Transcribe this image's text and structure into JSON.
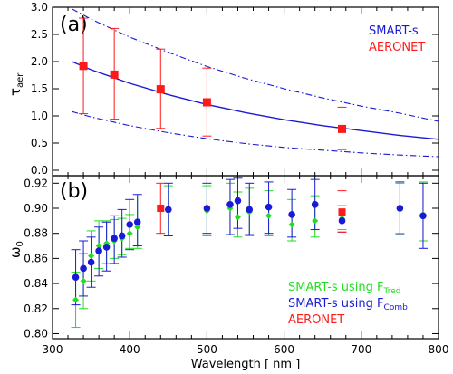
{
  "colors": {
    "smart_s": "#1a1ad6",
    "aeronet": "#ff1a1a",
    "tred": "#22dd22",
    "comb": "#1a1ad6",
    "axis": "#000000"
  },
  "chart_data": [
    {
      "type": "line",
      "panel_label": "(a)",
      "ylabel": {
        "symbol": "τ",
        "sub": "aer"
      },
      "ylim": [
        -0.1,
        3.0
      ],
      "yticks": [
        "0.0",
        "0.5",
        "1.0",
        "1.5",
        "2.0",
        "2.5",
        "3.0"
      ],
      "ytick_values": [
        0.0,
        0.5,
        1.0,
        1.5,
        2.0,
        2.5,
        3.0
      ],
      "xlim": [
        300,
        800
      ],
      "show_x_tick_labels": false,
      "legend": {
        "placement": "top-right",
        "entries": [
          "SMART-s",
          "AERONET"
        ]
      },
      "series": [
        {
          "name": "SMART-s",
          "style": "solid",
          "x": [
            325,
            350,
            400,
            450,
            500,
            550,
            600,
            650,
            700,
            750,
            800
          ],
          "y": [
            2.0,
            1.85,
            1.6,
            1.39,
            1.21,
            1.06,
            0.93,
            0.82,
            0.73,
            0.64,
            0.57
          ]
        },
        {
          "name": "SMART-s upper bound",
          "style": "dash-dot",
          "x": [
            325,
            350,
            400,
            450,
            500,
            550,
            600,
            650,
            700,
            750,
            800
          ],
          "y": [
            2.97,
            2.78,
            2.45,
            2.17,
            1.91,
            1.69,
            1.5,
            1.33,
            1.18,
            1.05,
            0.9
          ]
        },
        {
          "name": "SMART-s lower bound",
          "style": "dash-dot",
          "x": [
            325,
            350,
            400,
            450,
            500,
            550,
            600,
            650,
            700,
            750,
            800
          ],
          "y": [
            1.08,
            0.98,
            0.82,
            0.69,
            0.58,
            0.49,
            0.42,
            0.37,
            0.32,
            0.28,
            0.25
          ]
        },
        {
          "name": "AERONET",
          "style": "markers",
          "x": [
            340,
            380,
            440,
            500,
            675
          ],
          "y": [
            1.92,
            1.76,
            1.49,
            1.25,
            0.76
          ],
          "err_low": [
            0.88,
            0.82,
            0.72,
            0.62,
            0.38
          ],
          "err_high": [
            0.88,
            0.85,
            0.74,
            0.63,
            0.4
          ]
        }
      ]
    },
    {
      "type": "scatter",
      "panel_label": "(b)",
      "ylabel": {
        "symbol": "ω",
        "sub": "0"
      },
      "xlabel": "Wavelength [ nm ]",
      "ylim": [
        0.796,
        0.926
      ],
      "yticks": [
        "0.80",
        "0.82",
        "0.84",
        "0.86",
        "0.88",
        "0.90",
        "0.92"
      ],
      "ytick_values": [
        0.8,
        0.82,
        0.84,
        0.86,
        0.88,
        0.9,
        0.92
      ],
      "xlim": [
        300,
        800
      ],
      "xticks": [
        "300",
        "400",
        "500",
        "600",
        "700",
        "800"
      ],
      "xtick_values": [
        300,
        400,
        500,
        600,
        700,
        800
      ],
      "legend": {
        "placement": "bottom-right",
        "entries": [
          {
            "text": "SMART-s using F",
            "sub": "Tred"
          },
          {
            "text": "SMART-s using F",
            "sub": "Comb"
          },
          {
            "text": "AERONET",
            "sub": ""
          }
        ]
      },
      "series": [
        {
          "name": "SMART-s using FTred",
          "x": [
            330,
            340,
            350,
            360,
            370,
            380,
            390,
            400,
            410,
            450,
            500,
            530,
            540,
            555,
            580,
            610,
            640,
            675,
            750,
            780
          ],
          "y": [
            0.827,
            0.842,
            0.862,
            0.87,
            0.872,
            0.874,
            0.876,
            0.88,
            0.885,
            0.898,
            0.898,
            0.9,
            0.893,
            0.897,
            0.894,
            0.887,
            0.89,
            0.892,
            0.9,
            0.895
          ],
          "err_low": [
            0.022,
            0.022,
            0.02,
            0.018,
            0.016,
            0.014,
            0.013,
            0.012,
            0.017,
            0.02,
            0.02,
            0.021,
            0.016,
            0.019,
            0.016,
            0.013,
            0.013,
            0.009,
            0.02,
            0.021
          ],
          "err_high": [
            0.022,
            0.022,
            0.02,
            0.02,
            0.018,
            0.017,
            0.016,
            0.015,
            0.024,
            0.02,
            0.02,
            0.02,
            0.02,
            0.019,
            0.02,
            0.02,
            0.02,
            0.017,
            0.02,
            0.026
          ]
        },
        {
          "name": "SMART-s using FComb",
          "x": [
            330,
            340,
            350,
            360,
            370,
            380,
            390,
            400,
            410,
            450,
            500,
            530,
            540,
            555,
            580,
            610,
            640,
            675,
            750,
            780
          ],
          "y": [
            0.845,
            0.852,
            0.857,
            0.866,
            0.869,
            0.876,
            0.878,
            0.887,
            0.889,
            0.899,
            0.9,
            0.903,
            0.906,
            0.899,
            0.901,
            0.895,
            0.903,
            0.89,
            0.9,
            0.894
          ],
          "err_low": [
            0.022,
            0.022,
            0.02,
            0.02,
            0.019,
            0.02,
            0.017,
            0.02,
            0.019,
            0.021,
            0.02,
            0.024,
            0.022,
            0.02,
            0.021,
            0.018,
            0.02,
            0.009,
            0.021,
            0.026
          ],
          "err_high": [
            0.022,
            0.022,
            0.02,
            0.019,
            0.02,
            0.018,
            0.021,
            0.02,
            0.022,
            0.021,
            0.02,
            0.02,
            0.018,
            0.021,
            0.02,
            0.02,
            0.02,
            0.012,
            0.021,
            0.026
          ]
        },
        {
          "name": "AERONET",
          "x": [
            440,
            675
          ],
          "y": [
            0.9,
            0.897
          ],
          "err_low": [
            0.02,
            0.016
          ],
          "err_high": [
            0.02,
            0.017
          ]
        }
      ]
    }
  ]
}
